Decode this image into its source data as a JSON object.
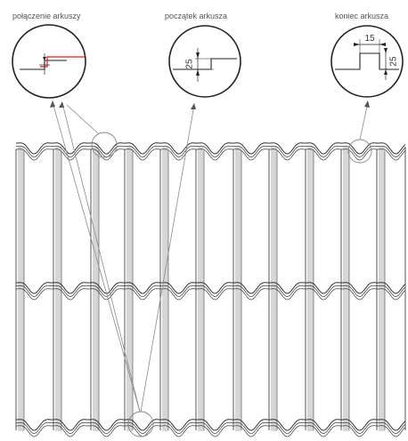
{
  "labels": {
    "detail_1": "połączenie arkuszy",
    "detail_2": "początek arkusza",
    "detail_3": "koniec arkusza"
  },
  "dimensions": {
    "start_height": "25",
    "end_width": "15",
    "end_height": "25"
  },
  "colors": {
    "line": "#333333",
    "leader": "#888888",
    "highlight": "#d42020",
    "stripe": "#d6d6d6"
  }
}
